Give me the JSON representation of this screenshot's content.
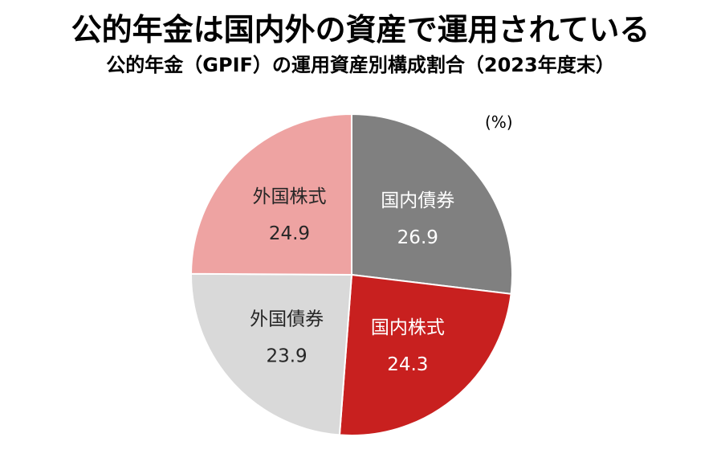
{
  "title": "公的年金は国内外の資産で運用されている",
  "subtitle": "公的年金（GPIF）の運用資産別構成割合（2023年度末）",
  "unit": "(%)",
  "chart_data": {
    "type": "pie",
    "title": "公的年金は国内外の資産で運用されている",
    "subtitle": "公的年金（GPIF）の運用資産別構成割合（2023年度末）",
    "unit": "(%)",
    "slices": [
      {
        "label": "国内債券",
        "value": 26.9,
        "display": "26.9",
        "color": "#808080",
        "text_color": "#ffffff"
      },
      {
        "label": "国内株式",
        "value": 24.3,
        "display": "24.3",
        "color": "#c8201f",
        "text_color": "#ffffff"
      },
      {
        "label": "外国債券",
        "value": 23.9,
        "display": "23.9",
        "color": "#d9d9d9",
        "text_color": "#262626"
      },
      {
        "label": "外国株式",
        "value": 24.9,
        "display": "24.9",
        "color": "#eea3a2",
        "text_color": "#262626"
      }
    ],
    "start": "12 o'clock",
    "direction": "clockwise"
  }
}
